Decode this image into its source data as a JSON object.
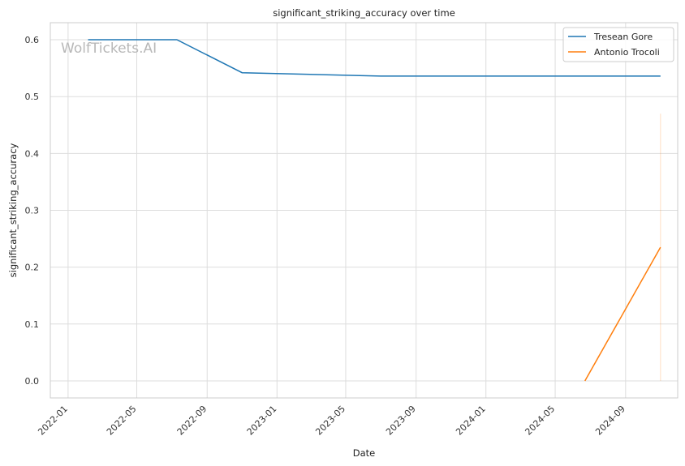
{
  "chart_data": {
    "type": "line",
    "title": "significant_striking_accuracy over time",
    "xlabel": "Date",
    "ylabel": "significant_striking_accuracy",
    "watermark": "WolfTickets.AI",
    "x_ticks": [
      "2022-01",
      "2022-05",
      "2022-09",
      "2023-01",
      "2023-05",
      "2023-09",
      "2024-01",
      "2024-05",
      "2024-09"
    ],
    "y_ticks": [
      0.0,
      0.1,
      0.2,
      0.3,
      0.4,
      0.5,
      0.6
    ],
    "xlim": [
      "2021-12-01",
      "2024-12-01"
    ],
    "ylim": [
      -0.03,
      0.63
    ],
    "grid": true,
    "legend_position": "top-right",
    "series": [
      {
        "name": "Tresean Gore",
        "color": "#1f77b4",
        "points": [
          {
            "x": "2022-02-05",
            "y": 0.6
          },
          {
            "x": "2022-07-10",
            "y": 0.6
          },
          {
            "x": "2022-11-01",
            "y": 0.542
          },
          {
            "x": "2023-07-01",
            "y": 0.536
          },
          {
            "x": "2024-11-01",
            "y": 0.536
          }
        ]
      },
      {
        "name": "Antonio Trocoli",
        "color": "#ff7f0e",
        "points": [
          {
            "x": "2024-06-22",
            "y": 0.0
          },
          {
            "x": "2024-11-01",
            "y": 0.235
          }
        ],
        "band": [
          {
            "x": "2024-11-01",
            "y_low": 0.0,
            "y_high": 0.47
          }
        ]
      }
    ]
  }
}
